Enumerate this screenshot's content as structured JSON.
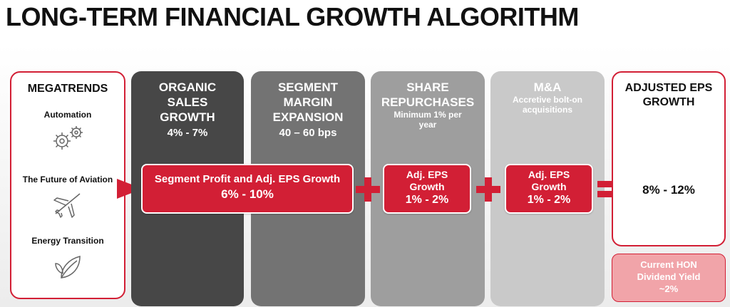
{
  "title": "LONG-TERM FINANCIAL GROWTH ALGORITHM",
  "megatrends": {
    "heading": "MEGATRENDS",
    "items": [
      {
        "label": "Automation",
        "icon": "gears-icon"
      },
      {
        "label": "The Future of Aviation",
        "icon": "airplane-icon"
      },
      {
        "label": "Energy Transition",
        "icon": "leaf-icon"
      }
    ]
  },
  "columns": [
    {
      "title_lines": [
        "ORGANIC",
        "SALES",
        "GROWTH"
      ],
      "value": "4% - 7%"
    },
    {
      "title_lines": [
        "SEGMENT",
        "MARGIN",
        "EXPANSION"
      ],
      "value": "40 – 60 bps"
    },
    {
      "title_lines": [
        "SHARE",
        "REPURCHASES"
      ],
      "sub_lines": [
        "Minimum 1% per",
        "year"
      ]
    },
    {
      "title_lines": [
        "M&A"
      ],
      "sub_lines": [
        "Accretive bolt-on",
        "acquisitions"
      ]
    }
  ],
  "boxes": {
    "segment": {
      "label": "Segment Profit and Adj. EPS Growth",
      "value": "6% - 10%"
    },
    "repurchase": {
      "label_lines": [
        "Adj. EPS",
        "Growth"
      ],
      "value": "1% - 2%"
    },
    "ma": {
      "label_lines": [
        "Adj. EPS",
        "Growth"
      ],
      "value": "1% - 2%"
    }
  },
  "result": {
    "title_lines": [
      "ADJUSTED EPS",
      "GROWTH"
    ],
    "value": "8% - 12%"
  },
  "dividend": {
    "lines": [
      "Current HON",
      "Dividend Yield",
      "~2%"
    ]
  },
  "colors": {
    "accent": "#d21f35",
    "dark1": "#474747",
    "dark2": "#737373",
    "dark3": "#9e9e9e",
    "dark4": "#c9c9c9",
    "pink": "#f1a4a9"
  }
}
